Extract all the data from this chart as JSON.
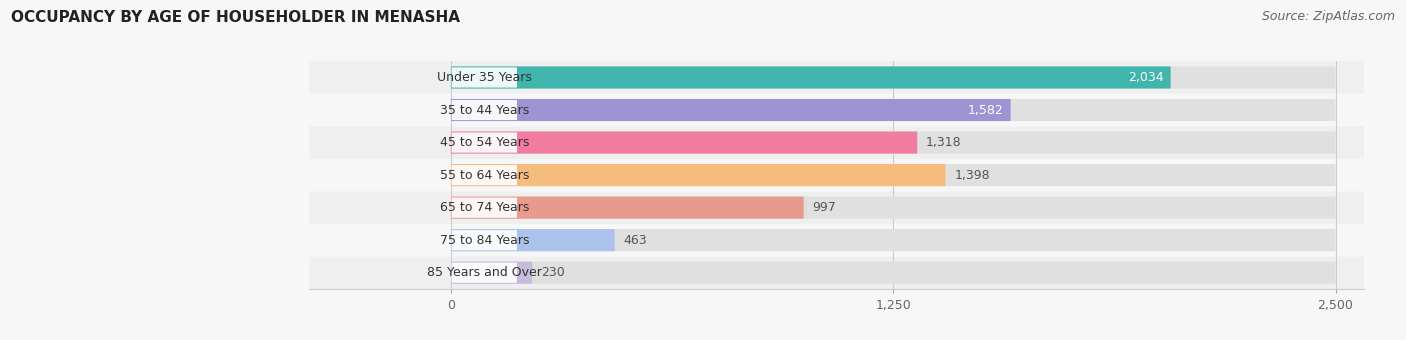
{
  "title": "OCCUPANCY BY AGE OF HOUSEHOLDER IN MENASHA",
  "source": "Source: ZipAtlas.com",
  "categories": [
    "Under 35 Years",
    "35 to 44 Years",
    "45 to 54 Years",
    "55 to 64 Years",
    "65 to 74 Years",
    "75 to 84 Years",
    "85 Years and Over"
  ],
  "values": [
    2034,
    1582,
    1318,
    1398,
    997,
    463,
    230
  ],
  "bar_colors": [
    "#40b5ad",
    "#9d94d4",
    "#f07ca0",
    "#f5bc7e",
    "#e89a8e",
    "#aac2ec",
    "#c8bada"
  ],
  "xlim_max": 2500,
  "xticks": [
    0,
    1250,
    2500
  ],
  "title_fontsize": 11,
  "source_fontsize": 9,
  "label_fontsize": 9,
  "value_fontsize": 9,
  "bar_height": 0.68,
  "bg_color": "#f7f7f7",
  "row_bg_even": "#efefef",
  "row_bg_odd": "#f7f7f7",
  "bar_bg_color": "#e0e0e0",
  "white_label_bg": "#ffffff",
  "title_color": "#222222",
  "source_color": "#666666",
  "tick_label_color": "#666666",
  "label_text_color": "#333333",
  "value_color_inside": "#ffffff",
  "value_color_outside": "#555555",
  "inside_threshold": 1500
}
